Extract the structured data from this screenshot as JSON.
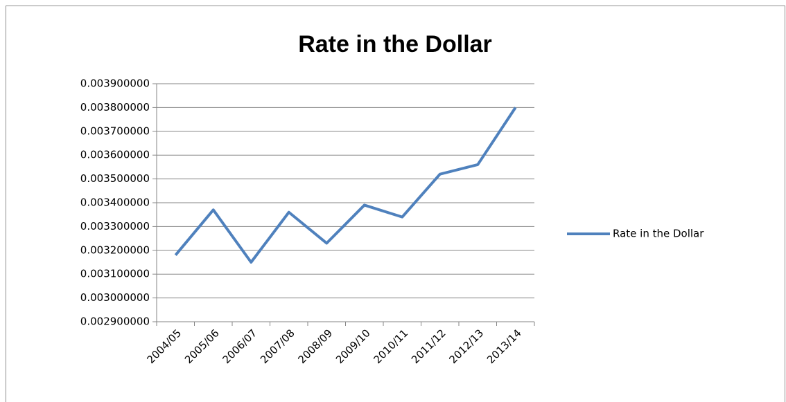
{
  "chart_data": {
    "type": "line",
    "title": "Rate in the Dollar",
    "categories": [
      "2004/05",
      "2005/06",
      "2006/07",
      "2007/08",
      "2008/09",
      "2009/10",
      "2010/11",
      "2011/12",
      "2012/13",
      "2013/14"
    ],
    "series": [
      {
        "name": "Rate in the Dollar",
        "color": "#4f81bd",
        "values": [
          0.00318,
          0.00337,
          0.00315,
          0.00336,
          0.00323,
          0.00339,
          0.00334,
          0.00352,
          0.00356,
          0.0038
        ]
      }
    ],
    "ylim": [
      0.0029,
      0.0039
    ],
    "yticks": [
      {
        "value": 0.0029,
        "label": "0.002900000"
      },
      {
        "value": 0.003,
        "label": "0.003000000"
      },
      {
        "value": 0.0031,
        "label": "0.003100000"
      },
      {
        "value": 0.0032,
        "label": "0.003200000"
      },
      {
        "value": 0.0033,
        "label": "0.003300000"
      },
      {
        "value": 0.0034,
        "label": "0.003400000"
      },
      {
        "value": 0.0035,
        "label": "0.003500000"
      },
      {
        "value": 0.0036,
        "label": "0.003600000"
      },
      {
        "value": 0.0037,
        "label": "0.003700000"
      },
      {
        "value": 0.0038,
        "label": "0.003800000"
      },
      {
        "value": 0.0039,
        "label": "0.003900000"
      }
    ],
    "grid": true,
    "legend": "right"
  }
}
